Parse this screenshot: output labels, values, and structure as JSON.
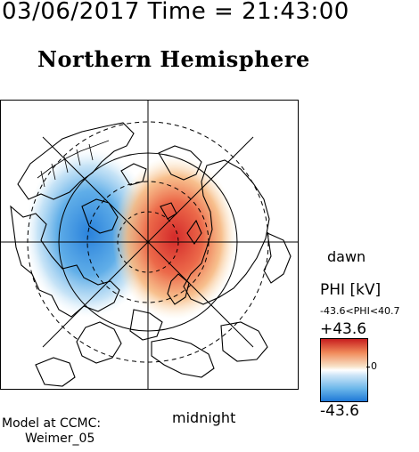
{
  "header": {
    "timestamp": "03/06/2017 Time = 21:43:00",
    "title": "Northern Hemisphere"
  },
  "map": {
    "orientation_labels": {
      "right": "dawn",
      "bottom": "midnight"
    },
    "colors": {
      "positive": "#d42a2a",
      "negative": "#2a82dc",
      "neutral": "#ffffff"
    }
  },
  "colorbar": {
    "title": "PHI [kV]",
    "range_label": "-43.6<PHI<40.7",
    "max_label": "+43.6",
    "mid_label": "0",
    "min_label": "-43.6"
  },
  "model": {
    "line1": "Model at CCMC:",
    "line2": "Weimer_05"
  }
}
